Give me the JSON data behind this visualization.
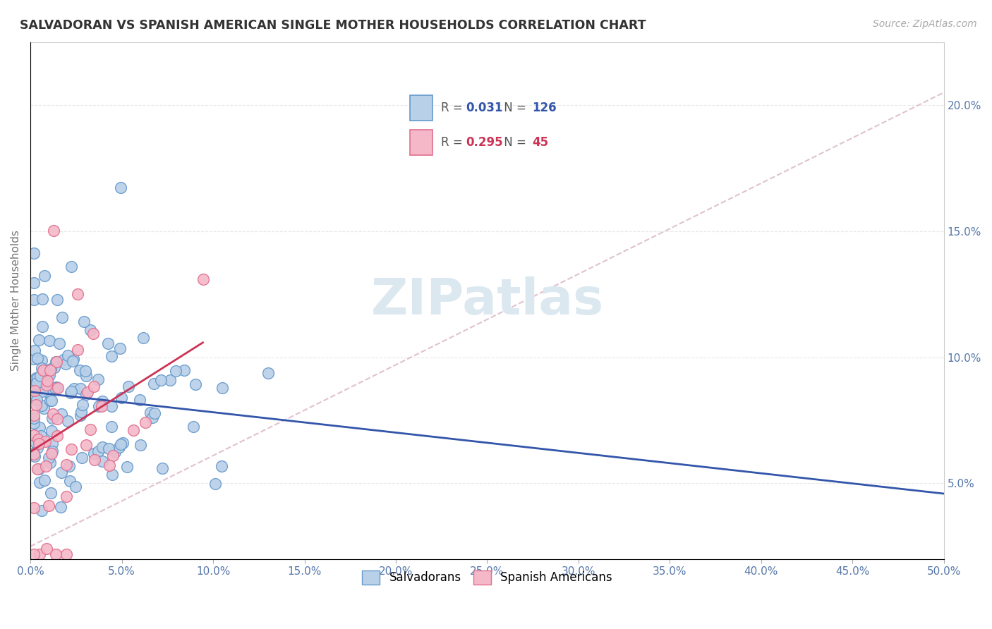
{
  "title": "SALVADORAN VS SPANISH AMERICAN SINGLE MOTHER HOUSEHOLDS CORRELATION CHART",
  "source": "Source: ZipAtlas.com",
  "ylabel": "Single Mother Households",
  "ytick_labels": [
    "5.0%",
    "10.0%",
    "15.0%",
    "20.0%"
  ],
  "ytick_values": [
    0.05,
    0.1,
    0.15,
    0.2
  ],
  "xlim": [
    0.0,
    0.5
  ],
  "ylim": [
    0.02,
    0.225
  ],
  "blue_R": 0.031,
  "blue_N": 126,
  "pink_R": 0.295,
  "pink_N": 45,
  "blue_color": "#b8d0e8",
  "blue_edge": "#6699cc",
  "pink_color": "#f4b8c8",
  "pink_edge": "#e07090",
  "trendline_blue": "#3355aa",
  "trendline_pink": "#cc3355",
  "trendline_gray_color": "#ddbbcc",
  "watermark_color": "#dce8f0",
  "watermark_text": "ZIPatlas",
  "background": "#ffffff",
  "grid_color": "#e8e8e8",
  "tick_color": "#5577aa",
  "legend_R_color_blue": "#3355aa",
  "legend_R_color_pink": "#cc3355",
  "legend_N_color_blue": "#3355aa",
  "legend_N_color_pink": "#cc3355"
}
